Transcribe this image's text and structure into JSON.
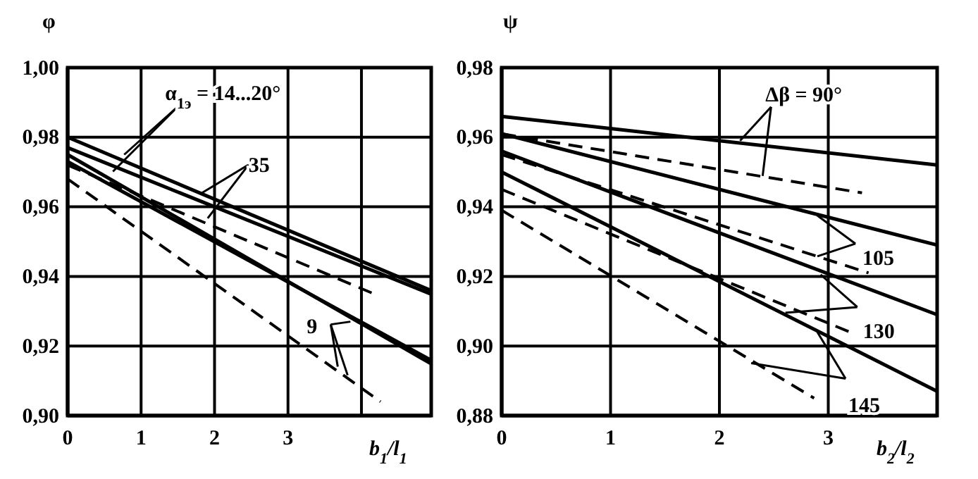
{
  "chart_data": [
    {
      "type": "line",
      "xlabel": "b$_{1}$/l$_{1}$",
      "ylabel": "φ",
      "xlim": [
        0,
        4.95
      ],
      "xticks": [
        0,
        1,
        2,
        3,
        {
          "value": 4,
          "label": null
        }
      ],
      "ylim": [
        0.9,
        1.0
      ],
      "yticks": [
        {
          "value": 0.9,
          "label": "0,90"
        },
        {
          "value": 0.92,
          "label": "0,92"
        },
        {
          "value": 0.94,
          "label": "0,94"
        },
        {
          "value": 0.96,
          "label": "0,96"
        },
        {
          "value": 0.98,
          "label": "0,98"
        },
        {
          "value": 1.0,
          "label": "1,00"
        }
      ],
      "grid": true,
      "series": [
        {
          "color": "#000000",
          "line_style": "solid",
          "x": [
            0,
            4.94
          ],
          "values": [
            0.98,
            0.936
          ]
        },
        {
          "color": "#000000",
          "line_style": "solid",
          "x": [
            0,
            4.94
          ],
          "values": [
            0.977,
            0.935
          ]
        },
        {
          "color": "#000000",
          "line_style": "solid",
          "x": [
            0,
            4.94
          ],
          "values": [
            0.975,
            0.915
          ]
        },
        {
          "color": "#000000",
          "line_style": "solid",
          "x": [
            0,
            4.94
          ],
          "values": [
            0.973,
            0.916
          ]
        },
        {
          "color": "#000000",
          "line_style": "dashed",
          "x": [
            0,
            4.17
          ],
          "values": [
            0.972,
            0.935
          ]
        },
        {
          "color": "#000000",
          "line_style": "dashed",
          "x": [
            0,
            4.26
          ],
          "values": [
            0.968,
            0.904
          ]
        }
      ],
      "annotations": [
        {
          "text": "α$_{1э}$ = 14...20°",
          "x": 0.77,
          "y": 0.975
        },
        {
          "text": "35",
          "x": 1.83,
          "y": 0.964
        },
        {
          "text": "9",
          "x": 3.85,
          "y": 0.927
        }
      ]
    },
    {
      "type": "line",
      "xlabel": "b$_{2}$/l$_{2}$",
      "ylabel": "ψ",
      "xlim": [
        0,
        4
      ],
      "xticks": [
        0,
        1,
        2,
        3
      ],
      "ylim": [
        0.88,
        0.98
      ],
      "yticks": [
        {
          "value": 0.88,
          "label": "0,88"
        },
        {
          "value": 0.9,
          "label": "0,90"
        },
        {
          "value": 0.92,
          "label": "0,92"
        },
        {
          "value": 0.94,
          "label": "0,94"
        },
        {
          "value": 0.96,
          "label": "0,96"
        },
        {
          "value": 0.98,
          "label": "0,98"
        }
      ],
      "grid": true,
      "series": [
        {
          "color": "#000000",
          "line_style": "solid",
          "x": [
            0,
            4
          ],
          "values": [
            0.966,
            0.952
          ]
        },
        {
          "color": "#000000",
          "line_style": "solid",
          "x": [
            0,
            4
          ],
          "values": [
            0.961,
            0.929
          ]
        },
        {
          "color": "#000000",
          "line_style": "solid",
          "x": [
            0,
            4
          ],
          "values": [
            0.956,
            0.909
          ]
        },
        {
          "color": "#000000",
          "line_style": "solid",
          "x": [
            0,
            4
          ],
          "values": [
            0.95,
            0.887
          ]
        },
        {
          "color": "#000000",
          "line_style": "dashed",
          "x": [
            0,
            3.31
          ],
          "values": [
            0.961,
            0.944
          ]
        },
        {
          "color": "#000000",
          "line_style": "dashed",
          "x": [
            0,
            3.37
          ],
          "values": [
            0.955,
            0.921
          ]
        },
        {
          "color": "#000000",
          "line_style": "dashed",
          "x": [
            0,
            3.2
          ],
          "values": [
            0.945,
            0.904
          ]
        },
        {
          "color": "#000000",
          "line_style": "dashed",
          "x": [
            0,
            2.87
          ],
          "values": [
            0.939,
            0.885
          ]
        }
      ],
      "annotations": [
        {
          "text": "Δβ = 90°",
          "x": 2.19,
          "y": 0.959
        },
        {
          "text": "105",
          "x": 2.9,
          "y": 0.9375
        },
        {
          "text": "130",
          "x": 2.93,
          "y": 0.9205
        },
        {
          "text": "145",
          "x": 2.9,
          "y": 0.904
        }
      ]
    }
  ]
}
